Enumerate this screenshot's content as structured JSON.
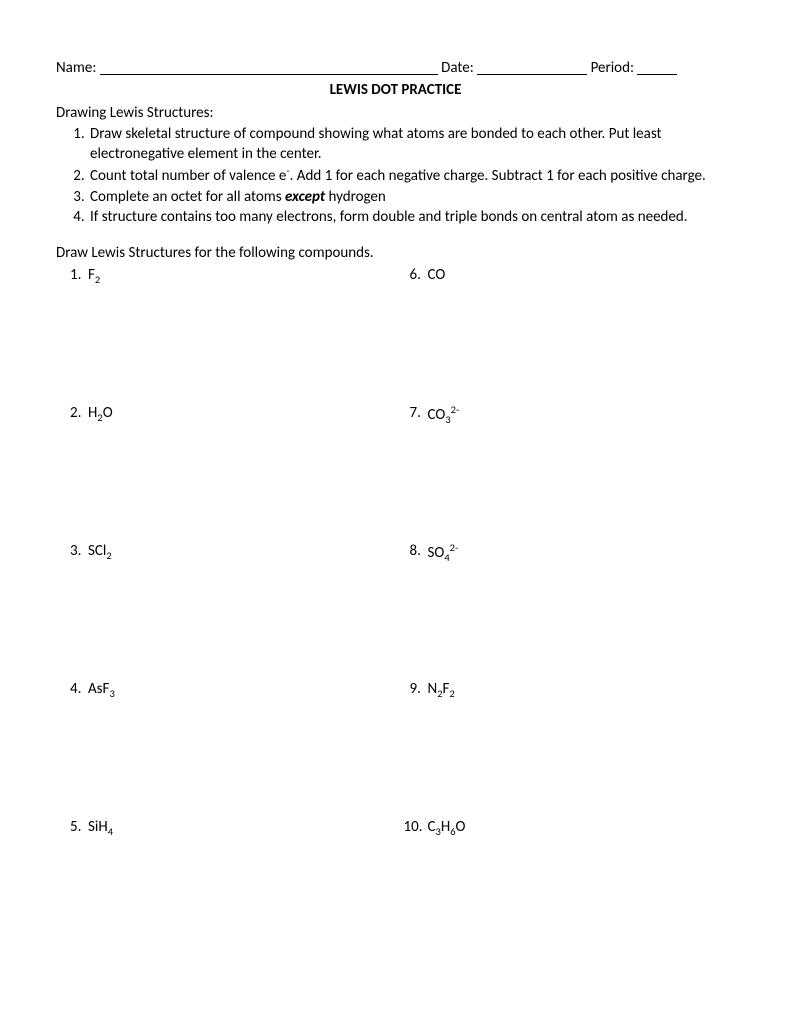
{
  "header": {
    "name_label": "Name:",
    "date_label": "Date:",
    "period_label": "Period:",
    "name_blank_width": 338,
    "date_blank_width": 110,
    "period_blank_width": 40
  },
  "title": "LEWIS DOT PRACTICE",
  "section_heading": "Drawing Lewis Structures:",
  "instructions": [
    {
      "pre": "Draw skeletal structure of compound showing what atoms are bonded to each other.  Put least electronegative element in the center."
    },
    {
      "pre": "Count total number of valence e",
      "sup": "-",
      "post": ".  Add 1 for each negative charge.  Subtract 1 for each positive charge."
    },
    {
      "pre": "Complete an octet for all atoms ",
      "em": "except",
      "post": " hydrogen"
    },
    {
      "pre": "If structure contains too many electrons, form double and triple bonds on central atom as needed."
    }
  ],
  "prompt": "Draw Lewis Structures for the following compounds.",
  "compounds": {
    "left": [
      {
        "num": "1.",
        "parts": [
          {
            "t": "F"
          },
          {
            "t": "2",
            "sub": true
          }
        ]
      },
      {
        "num": "2.",
        "parts": [
          {
            "t": "H"
          },
          {
            "t": "2",
            "sub": true
          },
          {
            "t": "O"
          }
        ]
      },
      {
        "num": "3.",
        "parts": [
          {
            "t": "SCl"
          },
          {
            "t": "2",
            "sub": true
          }
        ]
      },
      {
        "num": "4.",
        "parts": [
          {
            "t": "AsF"
          },
          {
            "t": "3",
            "sub": true
          }
        ]
      },
      {
        "num": "5.",
        "parts": [
          {
            "t": "SiH"
          },
          {
            "t": "4",
            "sub": true
          }
        ]
      }
    ],
    "right": [
      {
        "num": "6.",
        "parts": [
          {
            "t": "CO"
          }
        ]
      },
      {
        "num": "7.",
        "parts": [
          {
            "t": "CO"
          },
          {
            "t": "3",
            "sub": true
          },
          {
            "t": "2-",
            "sup": true
          }
        ]
      },
      {
        "num": "8.",
        "parts": [
          {
            "t": "SO"
          },
          {
            "t": "4",
            "sub": true
          },
          {
            "t": "2-",
            "sup": true
          }
        ]
      },
      {
        "num": "9.",
        "parts": [
          {
            "t": "N"
          },
          {
            "t": "2",
            "sub": true
          },
          {
            "t": "F"
          },
          {
            "t": "2",
            "sub": true
          }
        ]
      },
      {
        "num": "10.",
        "parts": [
          {
            "t": "C"
          },
          {
            "t": "3",
            "sub": true
          },
          {
            "t": "H"
          },
          {
            "t": "6",
            "sub": true
          },
          {
            "t": "O"
          }
        ]
      }
    ]
  }
}
